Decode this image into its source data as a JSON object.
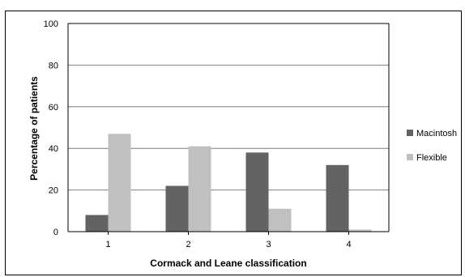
{
  "chart_data": {
    "type": "bar",
    "categories": [
      "1",
      "2",
      "3",
      "4"
    ],
    "series": [
      {
        "name": "Macintosh",
        "values": [
          8,
          22,
          38,
          32
        ],
        "color": "#636363"
      },
      {
        "name": "Flexible",
        "values": [
          47,
          41,
          11,
          1
        ],
        "color": "#c0c0c0"
      }
    ],
    "title": "",
    "xlabel": "Cormack and Leane classification",
    "ylabel": "Percentage of patients",
    "ylim": [
      0,
      100
    ],
    "yticks": [
      "0",
      "20",
      "40",
      "60",
      "80",
      "100"
    ],
    "grid": true,
    "legend": "right"
  }
}
